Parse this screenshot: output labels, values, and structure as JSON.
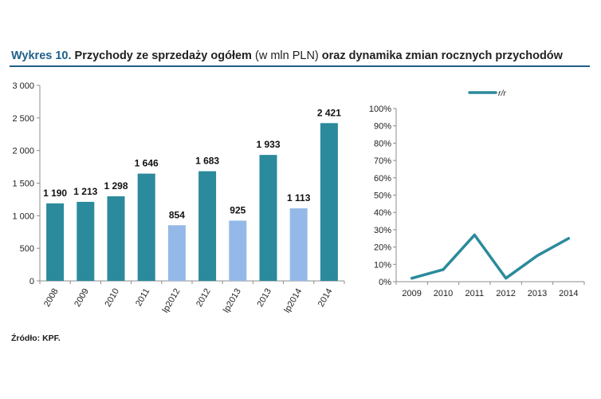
{
  "header": {
    "label": "Wykres 10.",
    "title_main_1": "Przychody ze sprzedaży ogółem",
    "title_unit": "(w mln PLN)",
    "title_main_2": "oraz dynamika zmian rocznych przychodów"
  },
  "footer": {
    "source": "Źródło: KPF."
  },
  "colors": {
    "primary": "#2b8a9c",
    "forecast": "#94b9e8",
    "line": "#2b8a9c",
    "title": "#1f5f8b"
  },
  "chart_data": [
    {
      "type": "bar",
      "title": "",
      "xlabel": "",
      "ylabel": "",
      "ylim": [
        0,
        3000
      ],
      "yticks": [
        0,
        500,
        1000,
        1500,
        2000,
        2500,
        3000
      ],
      "ytick_labels": [
        "0",
        "500",
        "1 000",
        "1 500",
        "2 000",
        "2 500",
        "3 000"
      ],
      "categories": [
        "2008",
        "2009",
        "2010",
        "2011",
        "lp2012",
        "2012",
        "lp2013",
        "2013",
        "lp2014",
        "2014"
      ],
      "values": [
        1190,
        1213,
        1298,
        1646,
        854,
        1683,
        925,
        1933,
        1113,
        2421
      ],
      "value_labels": [
        "1 190",
        "1 213",
        "1 298",
        "1 646",
        "854",
        "1 683",
        "925",
        "1 933",
        "1 113",
        "2 421"
      ],
      "forecast": [
        false,
        false,
        false,
        false,
        true,
        false,
        true,
        false,
        true,
        false
      ],
      "grid": false
    },
    {
      "type": "line",
      "title": "",
      "xlabel": "",
      "ylabel": "",
      "legend": [
        "r/r"
      ],
      "legend_position": "top",
      "ylim": [
        0,
        100
      ],
      "yticks": [
        0,
        10,
        20,
        30,
        40,
        50,
        60,
        70,
        80,
        90,
        100
      ],
      "ytick_labels": [
        "0%",
        "10%",
        "20%",
        "30%",
        "40%",
        "50%",
        "60%",
        "70%",
        "80%",
        "90%",
        "100%"
      ],
      "x": [
        "2009",
        "2010",
        "2011",
        "2012",
        "2013",
        "2014"
      ],
      "series": [
        {
          "name": "r/r",
          "values": [
            2,
            7,
            27,
            2,
            15,
            25
          ]
        }
      ],
      "grid": false
    }
  ]
}
